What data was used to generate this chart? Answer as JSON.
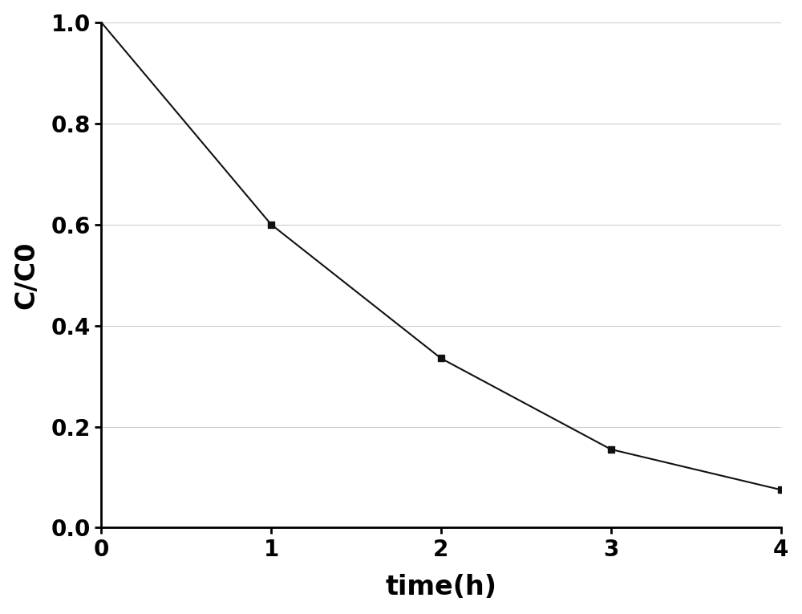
{
  "x": [
    0,
    1,
    2,
    3,
    4
  ],
  "y": [
    1.0,
    0.6,
    0.335,
    0.155,
    0.075
  ],
  "marker": "s",
  "marker_size": 6,
  "marker_color": "#111111",
  "line_color": "#111111",
  "line_width": 1.5,
  "xlabel": "time(h)",
  "ylabel": "C/C0",
  "xlim": [
    0,
    4
  ],
  "ylim": [
    0.0,
    1.0
  ],
  "xticks": [
    0,
    1,
    2,
    3,
    4
  ],
  "yticks": [
    0.0,
    0.2,
    0.4,
    0.6,
    0.8,
    1.0
  ],
  "xlabel_fontsize": 24,
  "ylabel_fontsize": 24,
  "tick_fontsize": 20,
  "spine_linewidth": 2.0,
  "background_color": "#ffffff",
  "plot_bg_color": "#ffffff",
  "grid_color": "#c8c8c8",
  "grid_linewidth": 0.7
}
